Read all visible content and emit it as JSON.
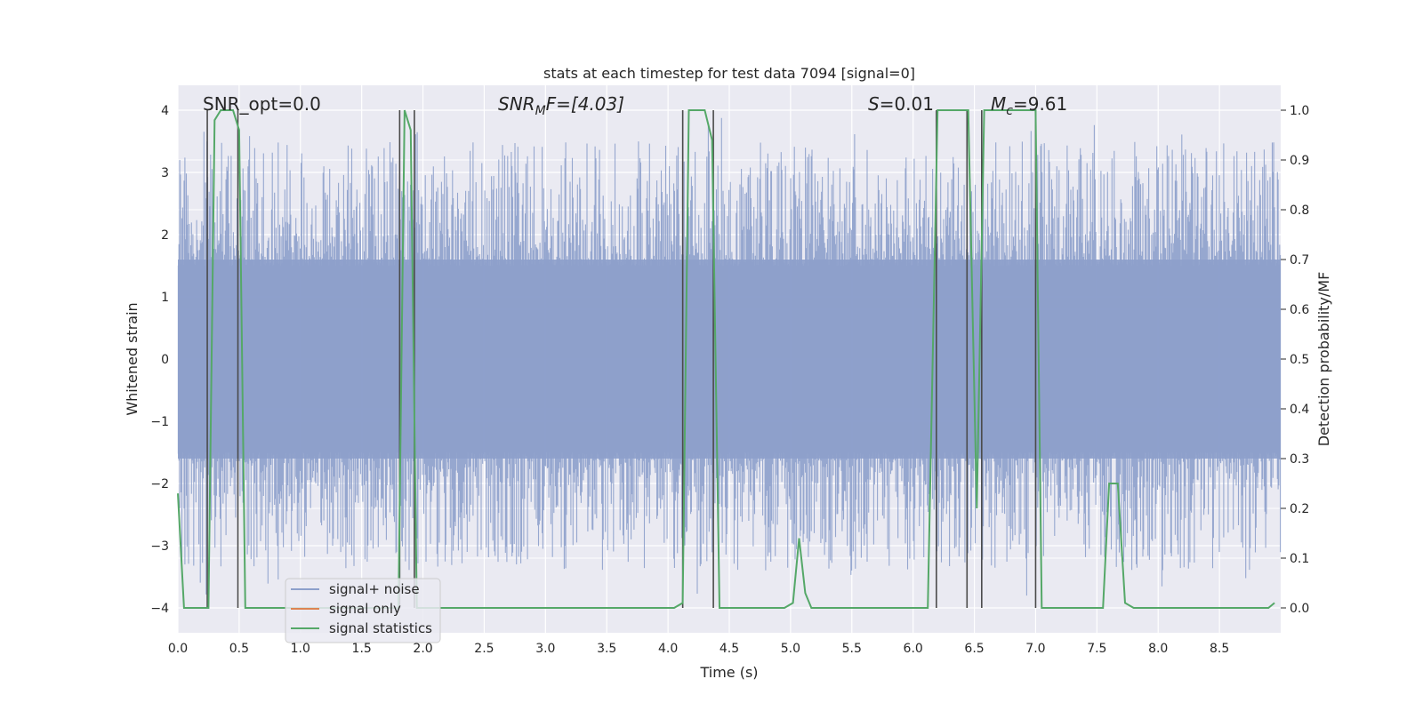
{
  "chart_data": {
    "type": "line",
    "title": "stats at each timestep for test data 7094 [signal=0]",
    "xlabel": "Time (s)",
    "ylabel": "Whitened strain",
    "ylabel_right": "Detection probability/MF",
    "xlim": [
      0.0,
      9.0
    ],
    "ylim": [
      -4.4,
      4.4
    ],
    "ylim_right": [
      -0.05,
      1.05
    ],
    "xticks": [
      "0.0",
      "0.5",
      "1.0",
      "1.5",
      "2.0",
      "2.5",
      "3.0",
      "3.5",
      "4.0",
      "4.5",
      "5.0",
      "5.5",
      "6.0",
      "6.5",
      "7.0",
      "7.5",
      "8.0",
      "8.5"
    ],
    "xtick_values": [
      0.0,
      0.5,
      1.0,
      1.5,
      2.0,
      2.5,
      3.0,
      3.5,
      4.0,
      4.5,
      5.0,
      5.5,
      6.0,
      6.5,
      7.0,
      7.5,
      8.0,
      8.5
    ],
    "yticks": [
      "−4",
      "−3",
      "−2",
      "−1",
      "0",
      "1",
      "2",
      "3",
      "4"
    ],
    "ytick_values": [
      -4,
      -3,
      -2,
      -1,
      0,
      1,
      2,
      3,
      4
    ],
    "yticks_right": [
      "0.0",
      "0.1",
      "0.2",
      "0.3",
      "0.4",
      "0.5",
      "0.6",
      "0.7",
      "0.8",
      "0.9",
      "1.0"
    ],
    "ytick_right_values": [
      0.0,
      0.1,
      0.2,
      0.3,
      0.4,
      0.5,
      0.6,
      0.7,
      0.8,
      0.9,
      1.0
    ],
    "grid": true,
    "legend_position": "lower-left",
    "annotations": {
      "snr_opt": "SNR_opt=0.0",
      "snr_mf_prefix": "SNR",
      "snr_mf_sub": "M",
      "snr_mf_suffix": "F=[4.03]",
      "s_label": "S",
      "s_value": "=0.01",
      "mc_label": "M",
      "mc_sub": "c",
      "mc_value": "=9.61"
    },
    "series": [
      {
        "name": "signal+ noise",
        "color": "#8da0cb",
        "kind": "noise",
        "core_band": [
          -1.6,
          1.6
        ],
        "peak_extent": [
          -3.9,
          4.0
        ]
      },
      {
        "name": "signal only",
        "color": "#dd8452",
        "kind": "line",
        "x": [],
        "y": []
      },
      {
        "name": "signal statistics",
        "color": "#55a868",
        "kind": "line",
        "axis": "right",
        "x": [
          0.0,
          0.05,
          0.1,
          0.2,
          0.25,
          0.3,
          0.35,
          0.4,
          0.45,
          0.5,
          0.55,
          0.6,
          1.75,
          1.8,
          1.85,
          1.9,
          1.95,
          2.0,
          4.05,
          4.12,
          4.17,
          4.22,
          4.3,
          4.36,
          4.42,
          4.95,
          5.02,
          5.07,
          5.12,
          5.17,
          5.25,
          6.12,
          6.2,
          6.28,
          6.45,
          6.52,
          6.58,
          6.65,
          7.0,
          7.05,
          7.5,
          7.55,
          7.6,
          7.67,
          7.73,
          7.8,
          8.55,
          8.62,
          8.8,
          8.9,
          8.95
        ],
        "y": [
          0.23,
          0.0,
          0.0,
          0.0,
          0.0,
          0.98,
          1.0,
          1.0,
          1.0,
          0.96,
          0.0,
          0.0,
          0.0,
          0.0,
          1.0,
          0.96,
          0.0,
          0.0,
          0.0,
          0.01,
          1.0,
          1.0,
          1.0,
          0.94,
          0.0,
          0.0,
          0.01,
          0.14,
          0.03,
          0.0,
          0.0,
          0.0,
          1.0,
          1.0,
          1.0,
          0.2,
          1.0,
          1.0,
          1.0,
          0.0,
          0.0,
          0.0,
          0.25,
          0.25,
          0.01,
          0.0,
          0.0,
          0.0,
          0.0,
          0.0,
          0.01
        ]
      }
    ],
    "vertical_markers": [
      0.24,
      0.49,
      1.81,
      1.93,
      4.12,
      4.37,
      6.19,
      6.44,
      6.56,
      7.0
    ]
  }
}
